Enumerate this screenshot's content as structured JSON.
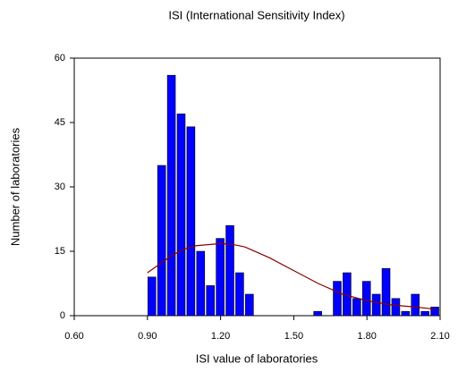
{
  "chart_data": {
    "type": "histogram",
    "title": "ISI (International Sensitivity Index)",
    "xlabel": "ISI value of laboratories",
    "ylabel": "Number of laboratories",
    "color": "#0000ff",
    "bins": [
      0.9,
      0.94,
      0.98,
      1.02,
      1.06,
      1.1,
      1.14,
      1.18,
      1.22,
      1.26,
      1.3,
      1.34,
      1.38,
      1.42,
      1.46,
      1.5,
      1.54,
      1.58,
      1.62,
      1.66,
      1.7,
      1.74,
      1.78,
      1.82,
      1.86,
      1.9,
      1.94,
      1.98,
      2.02,
      2.06,
      2.1
    ],
    "values": [
      9,
      35,
      56,
      47,
      44,
      15,
      7,
      18,
      21,
      10,
      5,
      0,
      0,
      0,
      0,
      0,
      0,
      1,
      0,
      8,
      10,
      4,
      8,
      5,
      11,
      4,
      1,
      5,
      1,
      2
    ],
    "curve": {
      "color": "#8b0000",
      "x": [
        0.9,
        0.95,
        1.0,
        1.05,
        1.1,
        1.2,
        1.25,
        1.3,
        1.4,
        1.5,
        1.6,
        1.7,
        1.8,
        1.9,
        2.0,
        2.08
      ],
      "values": [
        10,
        12,
        14,
        15.5,
        16.3,
        16.8,
        16.6,
        16,
        13.5,
        10.5,
        7.5,
        5,
        3.5,
        2.5,
        2,
        1.5
      ]
    },
    "xlim": [
      0.6,
      2.1
    ],
    "xticks": [
      {
        "value": 0.6,
        "label": "0.60"
      },
      {
        "value": 0.9,
        "label": "0.90"
      },
      {
        "value": 1.2,
        "label": "1.20"
      },
      {
        "value": 1.5,
        "label": "1.50"
      },
      {
        "value": 1.8,
        "label": "1.80"
      },
      {
        "value": 2.1,
        "label": "2.10"
      }
    ],
    "ylim": [
      0,
      60
    ],
    "yticks": [
      0,
      15,
      30,
      45,
      60
    ]
  }
}
